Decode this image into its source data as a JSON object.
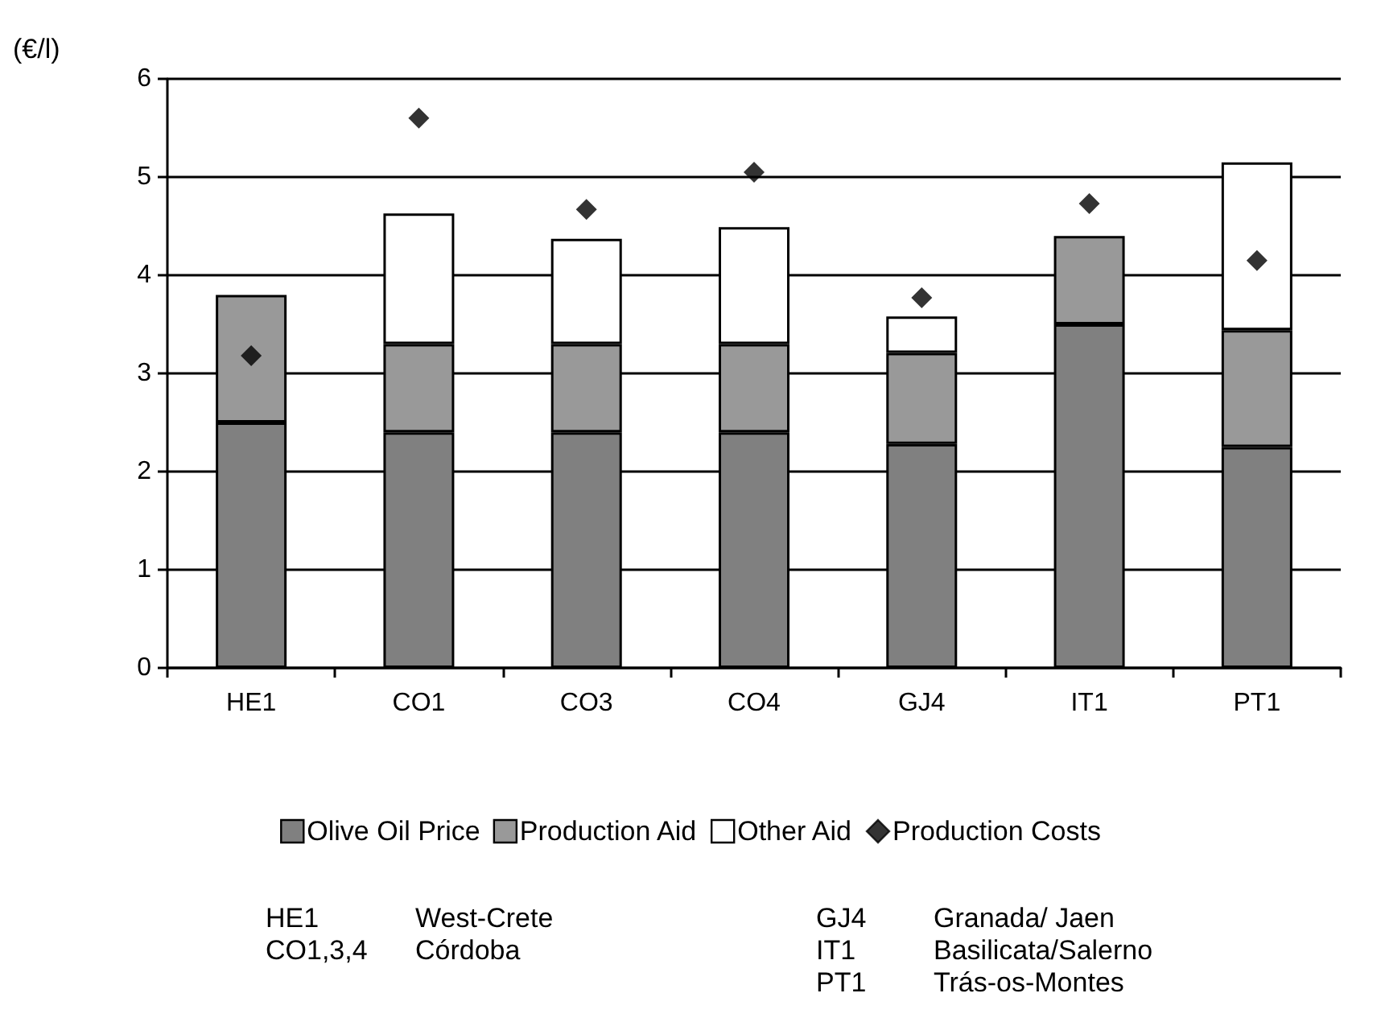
{
  "chart_data": {
    "type": "bar",
    "ylabel": "(€/l)",
    "categories": [
      "HE1",
      "CO1",
      "CO3",
      "CO4",
      "GJ4",
      "IT1",
      "PT1"
    ],
    "stacked": true,
    "series": [
      {
        "name": "Olive Oil Price",
        "color": "#808080",
        "values": [
          2.5,
          2.4,
          2.4,
          2.4,
          2.28,
          3.5,
          2.25
        ]
      },
      {
        "name": "Production Aid",
        "color": "#999999",
        "values": [
          1.3,
          0.9,
          0.9,
          0.9,
          0.93,
          0.9,
          1.19
        ]
      },
      {
        "name": "Other Aid",
        "color": "#ffffff",
        "values": [
          null,
          1.33,
          1.07,
          1.19,
          0.37,
          null,
          1.71
        ]
      },
      {
        "name": "Production Costs",
        "type": "scatter",
        "color": "#000000",
        "values": [
          3.18,
          5.6,
          4.67,
          5.05,
          3.77,
          4.73,
          4.15
        ]
      }
    ],
    "ylim": [
      0,
      6
    ],
    "yticks": [
      0,
      1,
      2,
      3,
      4,
      5,
      6
    ],
    "grid": "y",
    "legend": "bottom",
    "marker": "diamond",
    "annotations": [
      "HE1",
      "West-Crete",
      "CO1,3,4",
      "Córdoba",
      "GJ4",
      "Granada/ Jaen",
      "IT1",
      "Basilicata/Salerno",
      "PT1",
      "Trás-os-Montes"
    ]
  }
}
